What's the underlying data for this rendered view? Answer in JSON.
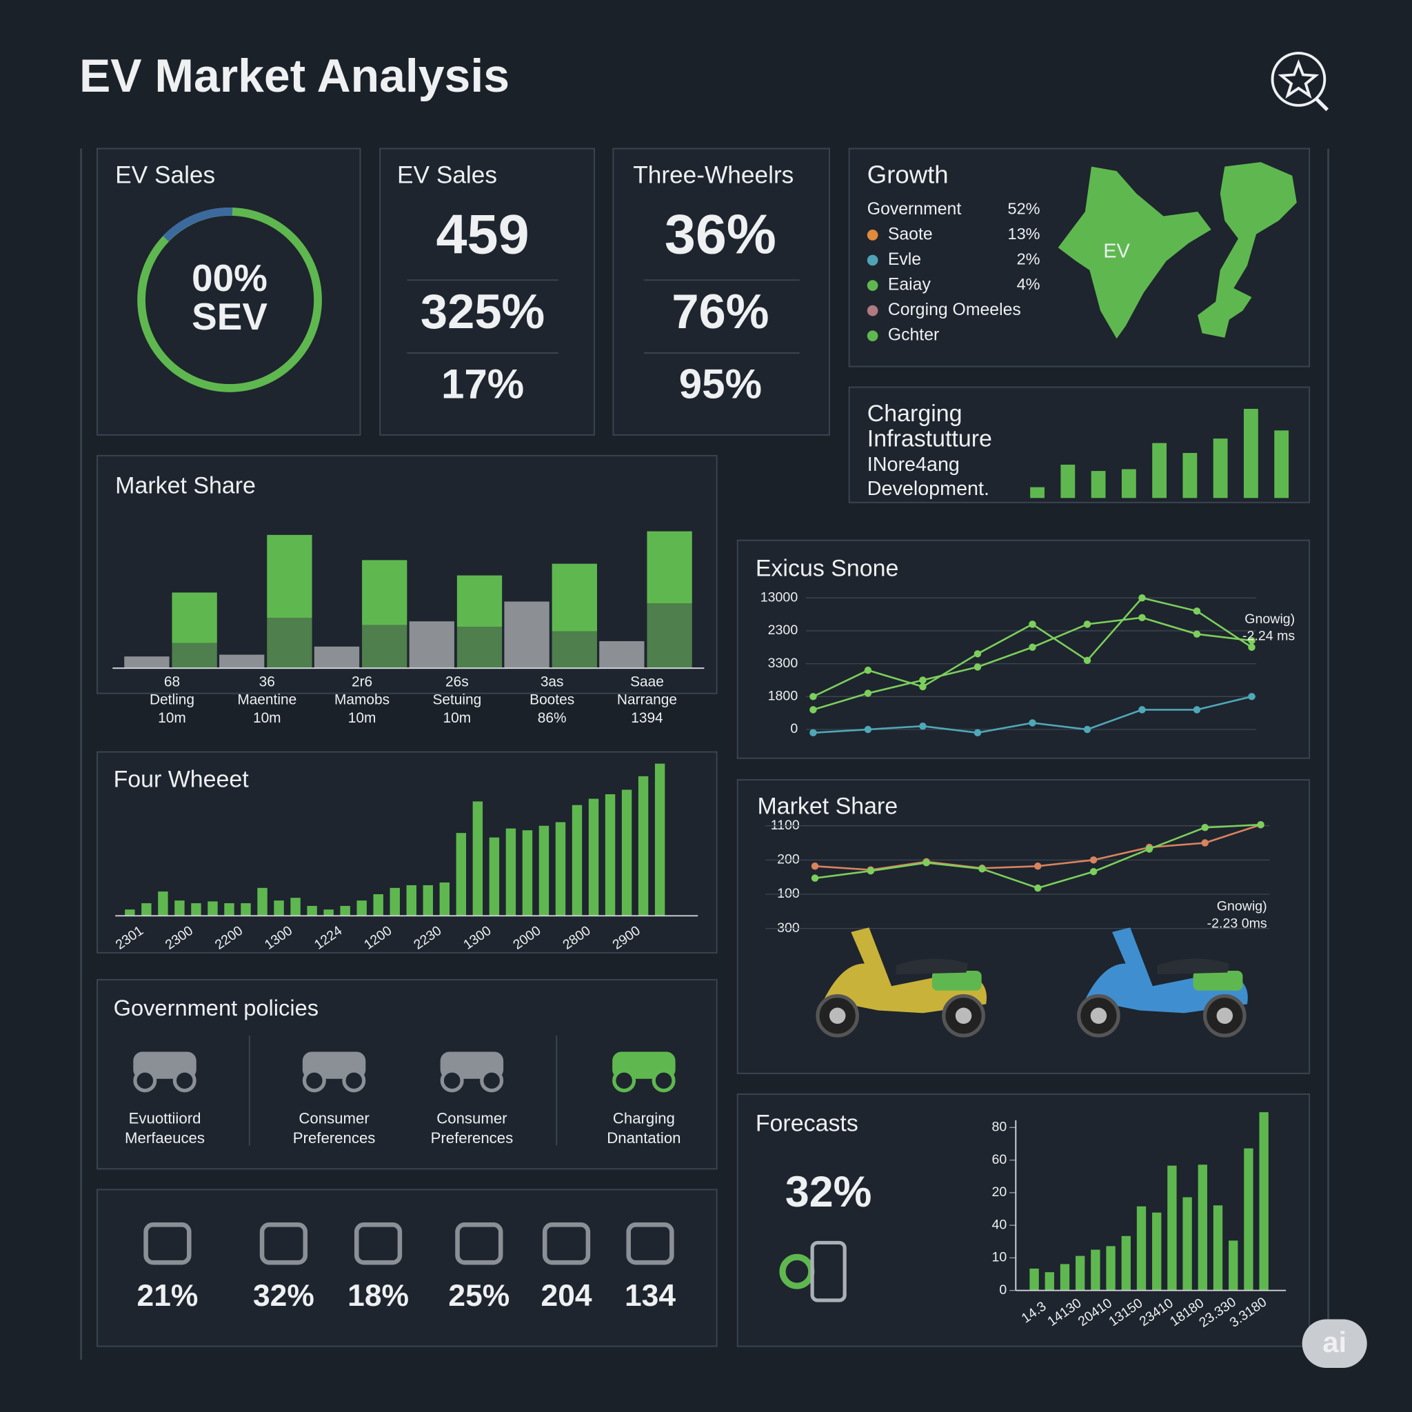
{
  "header": {
    "title": "EV Market Analysis"
  },
  "cards": [
    {
      "title": "EV Sales",
      "center": [
        "00%",
        "SEV"
      ]
    },
    {
      "title": "EV Sales",
      "values": [
        "459",
        "325%",
        "17%"
      ]
    },
    {
      "title": "Three-Wheelrs",
      "values": [
        "36%",
        "76%",
        "95%"
      ]
    }
  ],
  "growth": {
    "title": "Growth",
    "map_label": "EV",
    "items": [
      {
        "label": "Government",
        "value": "52%"
      },
      {
        "label": "Saote",
        "value": "13%",
        "color": "#e08a3c"
      },
      {
        "label": "Evle",
        "value": "2%",
        "color": "#4fa3b5"
      },
      {
        "label": "Eaiay",
        "value": "4%",
        "color": "#5fb84f"
      },
      {
        "label": "Corging Omeeles",
        "color": "#b07a80"
      },
      {
        "label": "Gchter",
        "color": "#5fb84f"
      }
    ]
  },
  "policies": {
    "title": "Government policies",
    "items": [
      [
        "Evuottiiord",
        "Merfaeuces"
      ],
      [
        "Consumer",
        "Preferences"
      ],
      [
        "Consumer",
        "Preferences"
      ],
      [
        "Charging",
        "Dnantation"
      ]
    ]
  },
  "stats": [
    "21%",
    "32%",
    "18%",
    "25%",
    "204",
    "134"
  ],
  "forecast": {
    "title": "Forecasts",
    "value": "32%"
  },
  "badge": "ai",
  "chart_data": [
    {
      "type": "bar",
      "title": [
        "Charging",
        "Infrastutture"
      ],
      "subtitle": [
        "INore4ang",
        "Development."
      ],
      "categories": [
        null,
        null,
        null,
        null,
        null,
        null,
        null,
        null,
        null
      ],
      "values": [
        12,
        37,
        30,
        32,
        61,
        50,
        66,
        99,
        75
      ],
      "color": "#5fb84f",
      "ylim": [
        0,
        100
      ]
    },
    {
      "type": "bar",
      "title": "Market Share",
      "categories": [
        [
          "68",
          "Detling",
          "10m"
        ],
        [
          "36",
          "Maentine",
          "10m"
        ],
        [
          "2r6",
          "Mamobs",
          "10m"
        ],
        [
          "26s",
          "Setuing",
          "10m"
        ],
        [
          "3as",
          "Bootes",
          "86%"
        ],
        [
          "Saae",
          "Narrange",
          "1394"
        ]
      ],
      "series": [
        {
          "color": "#8c9095",
          "values": [
            13,
            15,
            24,
            52,
            74,
            30
          ]
        },
        {
          "color": "#4f7f4c",
          "values": [
            28,
            56,
            48,
            46,
            41,
            72
          ]
        },
        {
          "color": "#5fb84f",
          "values": [
            56,
            92,
            72,
            57,
            75,
            80
          ]
        }
      ],
      "ylim": [
        0,
        160
      ]
    },
    {
      "type": "bar",
      "title": "Four Wheeet",
      "categories": [
        "2301",
        null,
        null,
        "2300",
        null,
        null,
        "2200",
        null,
        null,
        "1300",
        null,
        null,
        "1224",
        null,
        null,
        "1200",
        null,
        null,
        "2230",
        null,
        null,
        "1300",
        null,
        null,
        "2000",
        null,
        null,
        "2800",
        null,
        null,
        "2900",
        null,
        null
      ],
      "values": [
        7,
        14,
        27,
        17,
        14,
        16,
        14,
        14,
        31,
        17,
        20,
        11,
        7,
        11,
        17,
        24,
        31,
        34,
        34,
        37,
        92,
        127,
        87,
        97,
        95,
        100,
        104,
        123,
        130,
        135,
        140,
        155,
        169
      ],
      "color": "#5fb84f",
      "ylim": [
        0,
        180
      ]
    },
    {
      "type": "line",
      "title": "Exicus Snone",
      "grid": true,
      "categories": [
        null,
        null,
        null,
        null,
        null,
        null,
        null,
        null,
        null
      ],
      "series": [
        {
          "color": "#7ccf5c",
          "values": [
            1.0,
            1.8,
            1.3,
            2.3,
            3.2,
            2.1,
            4.0,
            3.6,
            2.5
          ]
        },
        {
          "color": "#7ccf5c",
          "values": [
            0.6,
            1.1,
            1.5,
            1.9,
            2.5,
            3.2,
            3.4,
            2.9,
            2.7
          ]
        },
        {
          "color": "#4fa8b8",
          "values": [
            -0.1,
            0,
            0.1,
            -0.1,
            0.2,
            0,
            0.6,
            0.6,
            1.0
          ]
        }
      ],
      "ylim": [
        -0.3,
        4.3
      ],
      "yticks": [
        {
          "value": 4,
          "label": "13000"
        },
        {
          "value": 3,
          "label": "2300"
        },
        {
          "value": 2,
          "label": "3300"
        },
        {
          "value": 1,
          "label": "1800"
        },
        0
      ],
      "annotation": [
        "Gnowig)",
        "-2.24 ms"
      ]
    },
    {
      "type": "line",
      "title": "Market Share",
      "grid": true,
      "categories": [
        null,
        null,
        null,
        null,
        null,
        null,
        null,
        null,
        null
      ],
      "series": [
        {
          "color": "#d9835f",
          "values": [
            1.82,
            1.71,
            1.95,
            1.76,
            1.82,
            2.0,
            2.37,
            2.5,
            3.03
          ]
        },
        {
          "color": "#7ccf5c",
          "values": [
            1.47,
            1.68,
            1.92,
            1.74,
            1.18,
            1.66,
            2.32,
            2.95,
            3.03
          ]
        }
      ],
      "ylim": [
        0,
        3.2
      ],
      "yticks": [
        {
          "value": 3,
          "label": "1100"
        },
        {
          "value": 2,
          "label": "200"
        },
        {
          "value": 1,
          "label": "100"
        },
        {
          "value": 0,
          "label": "300"
        }
      ],
      "annotation": [
        "Gnowig)",
        "-2.23 0ms"
      ]
    },
    {
      "type": "bar",
      "title": null,
      "categories": [
        "14.3",
        null,
        "14130",
        null,
        "20410",
        null,
        "13150",
        null,
        "23410",
        null,
        "18180",
        null,
        "23.330",
        null,
        "3.3180",
        null
      ],
      "values": [
        0.67,
        0.56,
        0.81,
        1.06,
        1.25,
        1.36,
        1.67,
        2.58,
        2.39,
        3.83,
        2.86,
        3.86,
        2.61,
        1.53,
        4.36,
        5.47
      ],
      "color": "#5fb84f",
      "ylim": [
        0,
        5.5
      ],
      "yticks": [
        {
          "value": 5,
          "label": "80"
        },
        {
          "value": 4,
          "label": "60"
        },
        {
          "value": 3,
          "label": "20"
        },
        {
          "value": 2,
          "label": "40"
        },
        {
          "value": 1,
          "label": "10"
        },
        0
      ]
    }
  ]
}
